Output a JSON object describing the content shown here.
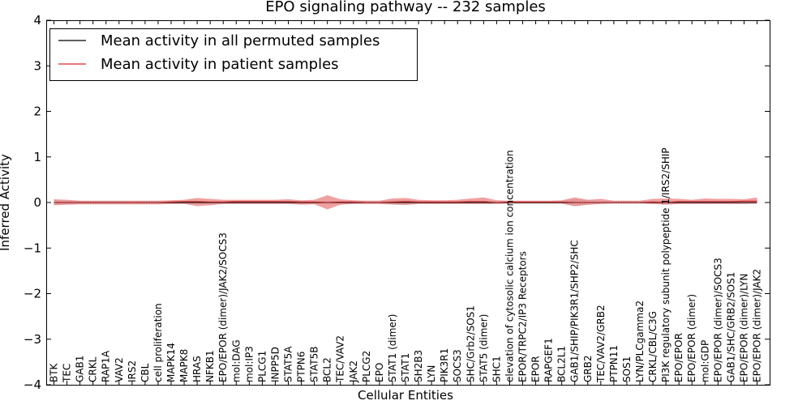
{
  "chart_data": {
    "type": "line",
    "title": "EPO signaling pathway -- 232 samples",
    "xlabel": "Cellular Entities",
    "ylabel": "Inferred Activity",
    "ylim": [
      -4,
      4
    ],
    "yticks": [
      4,
      3,
      2,
      1,
      0,
      -1,
      -2,
      -3,
      -4
    ],
    "ytick_labels": [
      "4",
      "3",
      "2",
      "1",
      "0",
      "−1",
      "−2",
      "−3",
      "−4"
    ],
    "grid": false,
    "legend_position": "top-left",
    "categories": [
      "BTK",
      "TEC",
      "GAB1",
      "CRKL",
      "RAP1A",
      "VAV2",
      "IRS2",
      "CBL",
      "cell proliferation",
      "MAPK14",
      "MAPK8",
      "HRAS",
      "NFKB1",
      "EPO/EPOR (dimer)/JAK2/SOCS3",
      "mol:DAG",
      "mol:IP3",
      "PLCG1",
      "INPP5D",
      "STAT5A",
      "PTPN6",
      "STAT5B",
      "BCL2",
      "TEC/VAV2",
      "JAK2",
      "PLCG2",
      "EPO",
      "STAT1 (dimer)",
      "STAT1",
      "SH2B3",
      "LYN",
      "PIK3R1",
      "SOCS3",
      "SHC/Grb2/SOS1",
      "STAT5 (dimer)",
      "SHC1",
      "elevation of cytosolic calcium ion concentration",
      "EPOR/TRPC2/IP3 Receptors",
      "EPOR",
      "RAPGEF1",
      "BCL2L1",
      "GAB1/SHIP/PIK3R1/SHP2/SHC",
      "GRB2",
      "TEC/VAV2/GRB2",
      "PTPN11",
      "SOS1",
      "LYN/PLCgamma2",
      "CRKL/CBL/C3G",
      "PI3K regulatory subunit polypeptide 1/IRS2/SHIP",
      "EPO/EPOR",
      "EPO/EPOR (dimer)",
      "mol:GDP",
      "EPO/EPOR (dimer)/SOCS3",
      "GAB1/SHC/GRB2/SOS1",
      "EPO/EPOR (dimer)/LYN",
      "EPO/EPOR (dimer)/JAK2"
    ],
    "series": [
      {
        "name": "Mean activity in all permuted samples",
        "color": "#000000",
        "values": [
          0,
          0,
          0,
          0,
          0,
          0,
          0,
          0,
          0,
          0,
          0,
          0,
          0,
          0,
          0,
          0,
          0,
          0,
          0,
          0,
          0,
          0,
          0,
          0,
          0,
          0,
          0,
          0,
          0,
          0,
          0,
          0,
          0,
          0,
          0,
          0,
          0,
          0,
          0,
          0,
          0,
          0,
          0,
          0,
          0,
          0,
          0,
          0,
          0,
          0,
          0,
          0,
          0,
          0,
          0
        ],
        "band_lower": [
          -0.05,
          -0.04,
          -0.03,
          -0.03,
          -0.03,
          -0.03,
          -0.03,
          -0.03,
          -0.03,
          -0.03,
          -0.03,
          -0.03,
          -0.03,
          -0.03,
          -0.03,
          -0.03,
          -0.03,
          -0.03,
          -0.03,
          -0.03,
          -0.03,
          -0.03,
          -0.03,
          -0.03,
          -0.03,
          -0.03,
          -0.05,
          -0.06,
          -0.03,
          -0.03,
          -0.03,
          -0.03,
          -0.03,
          -0.03,
          -0.03,
          -0.03,
          -0.03,
          -0.03,
          -0.03,
          -0.03,
          -0.08,
          -0.05,
          -0.03,
          -0.03,
          -0.03,
          -0.03,
          -0.03,
          -0.03,
          -0.03,
          -0.03,
          -0.03,
          -0.03,
          -0.03,
          -0.03,
          -0.03
        ],
        "band_upper": [
          0.05,
          0.04,
          0.03,
          0.03,
          0.03,
          0.03,
          0.03,
          0.03,
          0.03,
          0.03,
          0.03,
          0.03,
          0.03,
          0.03,
          0.03,
          0.03,
          0.03,
          0.03,
          0.03,
          0.03,
          0.03,
          0.03,
          0.03,
          0.03,
          0.03,
          0.03,
          0.05,
          0.06,
          0.03,
          0.03,
          0.03,
          0.03,
          0.03,
          0.03,
          0.03,
          0.03,
          0.03,
          0.03,
          0.03,
          0.03,
          0.08,
          0.05,
          0.03,
          0.03,
          0.03,
          0.03,
          0.03,
          0.03,
          0.03,
          0.03,
          0.03,
          0.03,
          0.03,
          0.03,
          0.03
        ],
        "band_color": "#c8c8c8"
      },
      {
        "name": "Mean activity in patient samples",
        "color": "#d62728",
        "values": [
          0,
          0,
          0,
          0,
          0,
          0,
          0,
          0,
          0,
          0.01,
          0.02,
          0.02,
          0.01,
          0.01,
          0.02,
          0.02,
          0.02,
          0.02,
          0.02,
          0.01,
          0.01,
          0,
          0.01,
          0.01,
          0,
          0,
          0.01,
          0.02,
          0.01,
          0.01,
          0.01,
          0.01,
          0.02,
          0.02,
          0,
          0.01,
          0.01,
          0.01,
          0.01,
          0.01,
          0,
          0,
          0,
          0,
          0,
          0,
          0.01,
          0,
          0.02,
          0.02,
          0.02,
          0.02,
          0.02,
          0.03,
          0.03
        ],
        "band_lower": [
          -0.06,
          -0.05,
          -0.04,
          -0.04,
          -0.04,
          -0.04,
          -0.04,
          -0.04,
          -0.04,
          -0.03,
          -0.03,
          -0.08,
          -0.06,
          -0.03,
          -0.03,
          -0.03,
          -0.03,
          -0.03,
          -0.03,
          -0.05,
          -0.04,
          -0.15,
          -0.05,
          -0.03,
          -0.03,
          -0.03,
          -0.04,
          -0.05,
          -0.03,
          -0.03,
          -0.03,
          -0.03,
          -0.03,
          -0.03,
          -0.03,
          -0.02,
          -0.02,
          -0.02,
          -0.02,
          -0.02,
          -0.08,
          -0.05,
          -0.03,
          -0.02,
          -0.02,
          -0.02,
          -0.03,
          -0.05,
          -0.03,
          -0.03,
          -0.03,
          -0.03,
          -0.03,
          -0.03,
          -0.02
        ],
        "band_upper": [
          0.07,
          0.06,
          0.04,
          0.04,
          0.04,
          0.04,
          0.04,
          0.04,
          0.04,
          0.05,
          0.06,
          0.1,
          0.08,
          0.06,
          0.06,
          0.06,
          0.06,
          0.06,
          0.07,
          0.05,
          0.06,
          0.16,
          0.07,
          0.05,
          0.04,
          0.04,
          0.09,
          0.1,
          0.06,
          0.05,
          0.05,
          0.06,
          0.09,
          0.11,
          0.05,
          0.04,
          0.04,
          0.04,
          0.04,
          0.05,
          0.11,
          0.06,
          0.08,
          0.04,
          0.04,
          0.04,
          0.08,
          0.09,
          0.08,
          0.06,
          0.09,
          0.08,
          0.08,
          0.07,
          0.11
        ],
        "band_color": "#e8797a"
      }
    ]
  }
}
